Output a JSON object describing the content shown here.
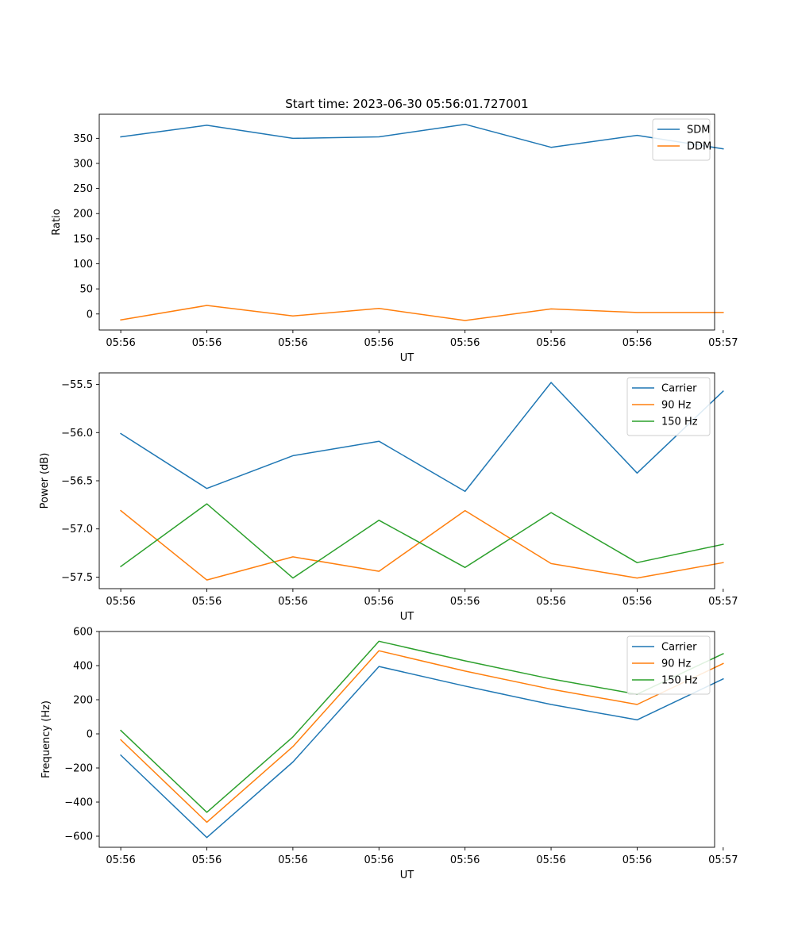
{
  "chart_data": [
    {
      "type": "line",
      "title": "Start time: 2023-06-30 05:56:01.727001",
      "xlabel": "UT",
      "ylabel": "Ratio",
      "xlim": [
        -0.25,
        6.9
      ],
      "ylim": [
        -32,
        398
      ],
      "x": [
        0,
        1,
        2,
        3,
        4,
        5,
        6,
        7
      ],
      "x_tick_labels": [
        "05:56",
        "05:56",
        "05:56",
        "05:56",
        "05:56",
        "05:56",
        "05:56",
        "05:57"
      ],
      "yticks": [
        0,
        50,
        100,
        150,
        200,
        250,
        300,
        350
      ],
      "grid": false,
      "legend_position": "top-right",
      "series": [
        {
          "name": "SDM",
          "color": "#1f77b4",
          "values": [
            353,
            376,
            350,
            353,
            378,
            332,
            356,
            329
          ]
        },
        {
          "name": "DDM",
          "color": "#ff7f0e",
          "values": [
            -12,
            17,
            -4,
            11,
            -13,
            10,
            3,
            3
          ]
        }
      ]
    },
    {
      "type": "line",
      "title": "",
      "xlabel": "UT",
      "ylabel": "Power (dB)",
      "xlim": [
        -0.25,
        6.9
      ],
      "ylim": [
        -57.62,
        -55.38
      ],
      "x": [
        0,
        1,
        2,
        3,
        4,
        5,
        6,
        7
      ],
      "x_tick_labels": [
        "05:56",
        "05:56",
        "05:56",
        "05:56",
        "05:56",
        "05:56",
        "05:56",
        "05:57"
      ],
      "yticks": [
        -57.5,
        -57.0,
        -56.5,
        -56.0,
        -55.5
      ],
      "ytick_labels": [
        "−57.5",
        "−57.0",
        "−56.5",
        "−56.0",
        "−55.5"
      ],
      "grid": false,
      "legend_position": "top-right",
      "series": [
        {
          "name": "Carrier",
          "color": "#1f77b4",
          "values": [
            -56.01,
            -56.58,
            -56.24,
            -56.09,
            -56.61,
            -55.48,
            -56.42,
            -55.57
          ]
        },
        {
          "name": "90 Hz",
          "color": "#ff7f0e",
          "values": [
            -56.81,
            -57.53,
            -57.29,
            -57.44,
            -56.81,
            -57.36,
            -57.51,
            -57.35
          ]
        },
        {
          "name": "150 Hz",
          "color": "#2ca02c",
          "values": [
            -57.39,
            -56.74,
            -57.51,
            -56.91,
            -57.4,
            -56.83,
            -57.35,
            -57.16
          ]
        }
      ]
    },
    {
      "type": "line",
      "title": "",
      "xlabel": "UT",
      "ylabel": "Frequency (Hz)",
      "xlim": [
        -0.25,
        6.9
      ],
      "ylim": [
        -665,
        600
      ],
      "x": [
        0,
        1,
        2,
        3,
        4,
        5,
        6,
        7
      ],
      "x_tick_labels": [
        "05:56",
        "05:56",
        "05:56",
        "05:56",
        "05:56",
        "05:56",
        "05:56",
        "05:57"
      ],
      "yticks": [
        -600,
        -400,
        -200,
        0,
        200,
        400,
        600
      ],
      "ytick_labels": [
        "−600",
        "−400",
        "−200",
        "0",
        "200",
        "400",
        "600"
      ],
      "grid": false,
      "legend_position": "top-right",
      "series": [
        {
          "name": "Carrier",
          "color": "#1f77b4",
          "values": [
            -125,
            -608,
            -165,
            395,
            280,
            172,
            82,
            322
          ]
        },
        {
          "name": "90 Hz",
          "color": "#ff7f0e",
          "values": [
            -35,
            -518,
            -75,
            487,
            368,
            262,
            172,
            412
          ]
        },
        {
          "name": "150 Hz",
          "color": "#2ca02c",
          "values": [
            20,
            -460,
            -18,
            543,
            428,
            322,
            232,
            470
          ]
        }
      ]
    }
  ]
}
